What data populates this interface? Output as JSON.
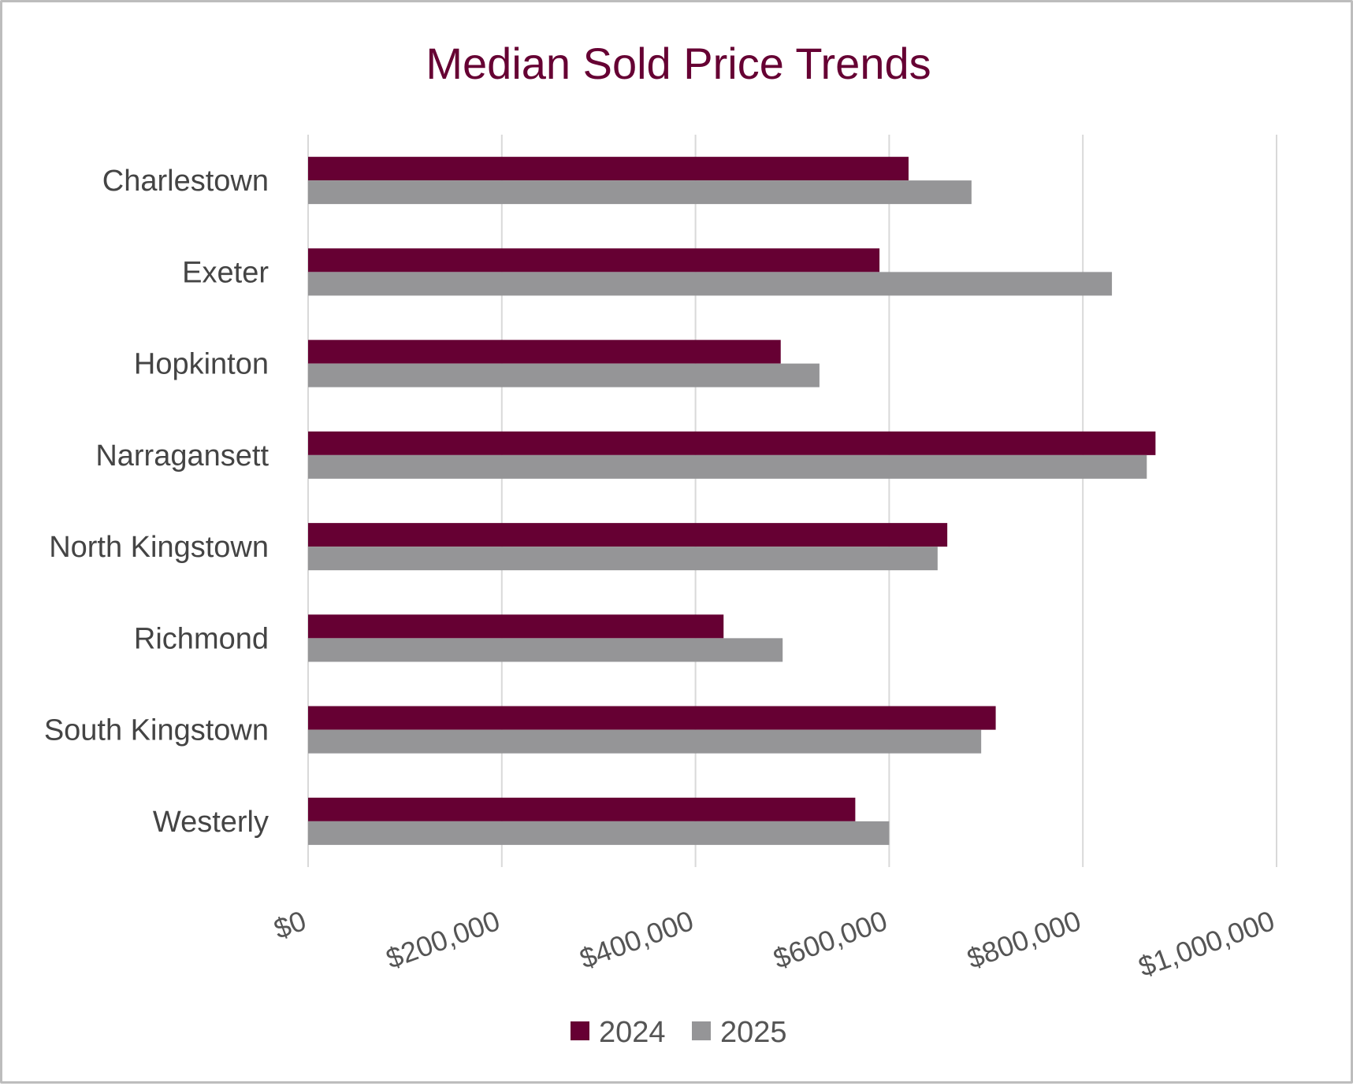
{
  "chart_data": {
    "type": "bar",
    "orientation": "horizontal",
    "title": "Median Sold Price Trends",
    "categories": [
      "Charlestown",
      "Exeter",
      "Hopkinton",
      "Narragansett",
      "North Kingstown",
      "Richmond",
      "South Kingstown",
      "Westerly"
    ],
    "series": [
      {
        "name": "2024",
        "color": "#660033",
        "values": [
          620000,
          590000,
          488000,
          875000,
          660000,
          429000,
          710000,
          565000
        ]
      },
      {
        "name": "2025",
        "color": "#959597",
        "values": [
          685000,
          830000,
          528000,
          866000,
          650000,
          490000,
          695000,
          600000
        ]
      }
    ],
    "xlim": [
      0,
      1000000
    ],
    "xticks": [
      0,
      200000,
      400000,
      600000,
      800000,
      1000000
    ],
    "xtick_labels": [
      "$0",
      "$200,000",
      "$400,000",
      "$600,000",
      "$800,000",
      "$1,000,000"
    ],
    "xlabel": "",
    "ylabel": "",
    "grid": "vertical",
    "legend_position": "bottom",
    "colors": {
      "title": "#660033",
      "gridline": "#d9d9d9",
      "axis_line": "#d9d9d9"
    }
  }
}
